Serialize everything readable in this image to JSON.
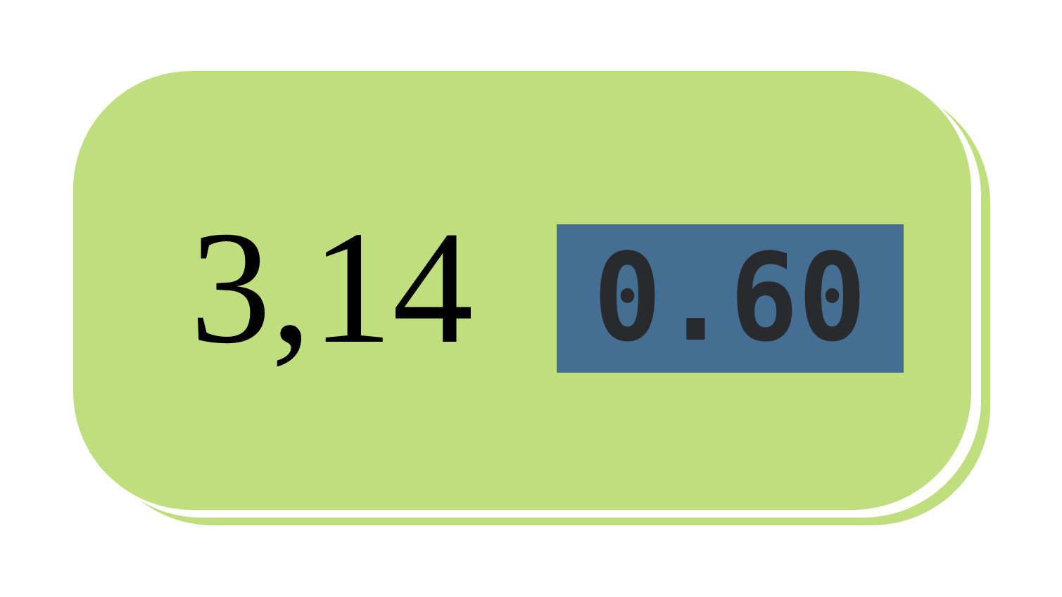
{
  "card": {
    "value_text": "3,14",
    "color": "#bfdf7e"
  },
  "display": {
    "value_text": "0.60",
    "background_color": "#456f92",
    "digit_color": "#282a2d"
  }
}
